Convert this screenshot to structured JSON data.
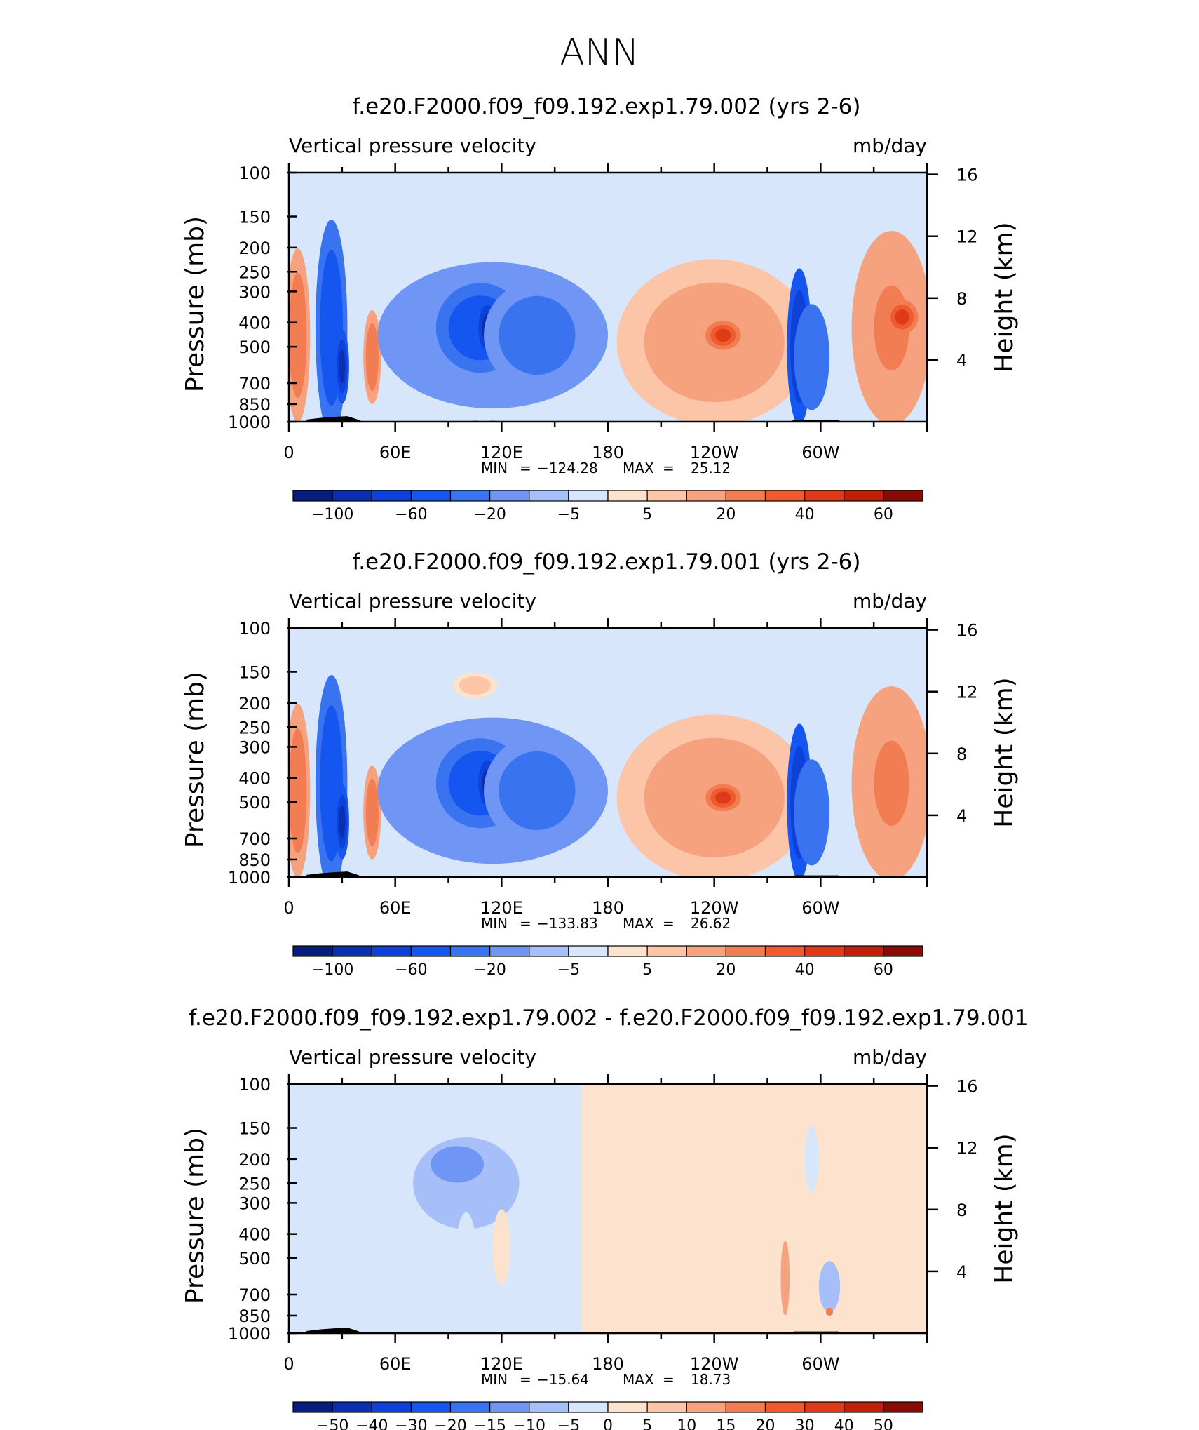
{
  "page_title": "ANN",
  "chart_data": [
    {
      "type": "heatmap",
      "title": "f.e20.F2000.f09_f09.192.exp1.79.002 (yrs 2-6)",
      "left_label": "Vertical pressure velocity",
      "right_label": "mb/day",
      "ylabel": "Pressure (mb)",
      "y2label": "Height (km)",
      "pressure_ticks": [
        "100",
        "150",
        "200",
        "250",
        "300",
        "400",
        "500",
        "700",
        "850",
        "1000"
      ],
      "pressure_values": [
        100,
        150,
        200,
        250,
        300,
        400,
        500,
        700,
        850,
        1000
      ],
      "height_ticks": [
        "16",
        "12",
        "8",
        "4"
      ],
      "height_values": [
        16,
        12,
        8,
        4
      ],
      "xlim": [
        0,
        360
      ],
      "x_ticks": [
        {
          "lon": 0,
          "label": "0"
        },
        {
          "lon": 60,
          "label": "60E"
        },
        {
          "lon": 120,
          "label": "120E"
        },
        {
          "lon": 180,
          "label": "180"
        },
        {
          "lon": 240,
          "label": "120W"
        },
        {
          "lon": 300,
          "label": "60W"
        }
      ],
      "min_label": "MIN",
      "max_label": "MAX",
      "min_value": "−124.28",
      "max_value": "25.12",
      "colorbar_labels": [
        "−100",
        "−60",
        "−20",
        "−5",
        "5",
        "20",
        "40",
        "60"
      ],
      "colorbar_colors": [
        "#081d7e",
        "#0b2fb0",
        "#0d41d8",
        "#1556f0",
        "#3a73f0",
        "#6f96f5",
        "#a7bff8",
        "#d7e6fb",
        "#fde3cd",
        "#fcc5a8",
        "#f6a27f",
        "#f27d52",
        "#ef5a2e",
        "#dd3a17",
        "#be2008",
        "#8a0a04"
      ],
      "features": [
        {
          "lon": 5,
          "p": 450,
          "w": 14,
          "h": 600,
          "v": 25
        },
        {
          "lon": 24,
          "p": 420,
          "w": 18,
          "h": 640,
          "v": -60
        },
        {
          "lon": 30,
          "p": 600,
          "w": 8,
          "h": 400,
          "v": -100
        },
        {
          "lon": 47,
          "p": 550,
          "w": 10,
          "h": 450,
          "v": 25
        },
        {
          "lon": 115,
          "p": 450,
          "w": 130,
          "h": 530,
          "v": -25
        },
        {
          "lon": 108,
          "p": 420,
          "w": 50,
          "h": 330,
          "v": -60
        },
        {
          "lon": 112,
          "p": 420,
          "w": 14,
          "h": 240,
          "v": -100
        },
        {
          "lon": 140,
          "p": 450,
          "w": 60,
          "h": 420,
          "v": -30
        },
        {
          "lon": 195,
          "p": 160,
          "w": 80,
          "h": 60,
          "v": -5
        },
        {
          "lon": 240,
          "p": 480,
          "w": 110,
          "h": 620,
          "v": 18
        },
        {
          "lon": 245,
          "p": 450,
          "w": 20,
          "h": 120,
          "v": 40
        },
        {
          "lon": 288,
          "p": 500,
          "w": 14,
          "h": 620,
          "v": -80
        },
        {
          "lon": 295,
          "p": 550,
          "w": 20,
          "h": 500,
          "v": -40
        },
        {
          "lon": 340,
          "p": 420,
          "w": 45,
          "h": 600,
          "v": 20
        },
        {
          "lon": 346,
          "p": 380,
          "w": 18,
          "h": 120,
          "v": 40
        }
      ],
      "topography": [
        {
          "lon": 10,
          "p": 980
        },
        {
          "lon": 18,
          "p": 965
        },
        {
          "lon": 27,
          "p": 955
        },
        {
          "lon": 33,
          "p": 950
        },
        {
          "lon": 38,
          "p": 975
        },
        {
          "lon": 42,
          "p": 1000
        },
        {
          "lon": 102,
          "p": 1000
        },
        {
          "lon": 105,
          "p": 990
        },
        {
          "lon": 110,
          "p": 1000
        },
        {
          "lon": 115,
          "p": 990
        },
        {
          "lon": 120,
          "p": 1000
        },
        {
          "lon": 282,
          "p": 1000
        },
        {
          "lon": 285,
          "p": 985
        },
        {
          "lon": 310,
          "p": 985
        },
        {
          "lon": 312,
          "p": 1000
        }
      ]
    },
    {
      "type": "heatmap",
      "title": "f.e20.F2000.f09_f09.192.exp1.79.001 (yrs 2-6)",
      "left_label": "Vertical pressure velocity",
      "right_label": "mb/day",
      "ylabel": "Pressure (mb)",
      "y2label": "Height (km)",
      "pressure_ticks": [
        "100",
        "150",
        "200",
        "250",
        "300",
        "400",
        "500",
        "700",
        "850",
        "1000"
      ],
      "pressure_values": [
        100,
        150,
        200,
        250,
        300,
        400,
        500,
        700,
        850,
        1000
      ],
      "height_ticks": [
        "16",
        "12",
        "8",
        "4"
      ],
      "height_values": [
        16,
        12,
        8,
        4
      ],
      "xlim": [
        0,
        360
      ],
      "x_ticks": [
        {
          "lon": 0,
          "label": "0"
        },
        {
          "lon": 60,
          "label": "60E"
        },
        {
          "lon": 120,
          "label": "120E"
        },
        {
          "lon": 180,
          "label": "180"
        },
        {
          "lon": 240,
          "label": "120W"
        },
        {
          "lon": 300,
          "label": "60W"
        }
      ],
      "min_label": "MIN",
      "max_label": "MAX",
      "min_value": "−133.83",
      "max_value": "26.62",
      "colorbar_labels": [
        "−100",
        "−60",
        "−20",
        "−5",
        "5",
        "20",
        "40",
        "60"
      ],
      "colorbar_colors": [
        "#081d7e",
        "#0b2fb0",
        "#0d41d8",
        "#1556f0",
        "#3a73f0",
        "#6f96f5",
        "#a7bff8",
        "#d7e6fb",
        "#fde3cd",
        "#fcc5a8",
        "#f6a27f",
        "#f27d52",
        "#ef5a2e",
        "#dd3a17",
        "#be2008",
        "#8a0a04"
      ],
      "features": [
        {
          "lon": 5,
          "p": 450,
          "w": 14,
          "h": 600,
          "v": 25
        },
        {
          "lon": 24,
          "p": 420,
          "w": 18,
          "h": 640,
          "v": -60
        },
        {
          "lon": 30,
          "p": 600,
          "w": 8,
          "h": 400,
          "v": -100
        },
        {
          "lon": 47,
          "p": 550,
          "w": 10,
          "h": 450,
          "v": 25
        },
        {
          "lon": 105,
          "p": 170,
          "w": 25,
          "h": 40,
          "v": 8
        },
        {
          "lon": 115,
          "p": 450,
          "w": 130,
          "h": 530,
          "v": -25
        },
        {
          "lon": 108,
          "p": 420,
          "w": 50,
          "h": 330,
          "v": -60
        },
        {
          "lon": 112,
          "p": 420,
          "w": 14,
          "h": 240,
          "v": -100
        },
        {
          "lon": 140,
          "p": 450,
          "w": 60,
          "h": 420,
          "v": -30
        },
        {
          "lon": 195,
          "p": 160,
          "w": 80,
          "h": 60,
          "v": -5
        },
        {
          "lon": 240,
          "p": 480,
          "w": 110,
          "h": 620,
          "v": 18
        },
        {
          "lon": 245,
          "p": 480,
          "w": 20,
          "h": 120,
          "v": 40
        },
        {
          "lon": 288,
          "p": 500,
          "w": 14,
          "h": 620,
          "v": -80
        },
        {
          "lon": 295,
          "p": 550,
          "w": 20,
          "h": 500,
          "v": -40
        },
        {
          "lon": 340,
          "p": 420,
          "w": 45,
          "h": 600,
          "v": 20
        }
      ],
      "topography": [
        {
          "lon": 10,
          "p": 980
        },
        {
          "lon": 18,
          "p": 965
        },
        {
          "lon": 27,
          "p": 955
        },
        {
          "lon": 33,
          "p": 950
        },
        {
          "lon": 38,
          "p": 975
        },
        {
          "lon": 42,
          "p": 1000
        },
        {
          "lon": 102,
          "p": 1000
        },
        {
          "lon": 105,
          "p": 990
        },
        {
          "lon": 110,
          "p": 1000
        },
        {
          "lon": 115,
          "p": 990
        },
        {
          "lon": 120,
          "p": 1000
        },
        {
          "lon": 282,
          "p": 1000
        },
        {
          "lon": 285,
          "p": 985
        },
        {
          "lon": 310,
          "p": 985
        },
        {
          "lon": 312,
          "p": 1000
        }
      ]
    },
    {
      "type": "heatmap",
      "title": "f.e20.F2000.f09_f09.192.exp1.79.002 - f.e20.F2000.f09_f09.192.exp1.79.001",
      "left_label": "Vertical pressure velocity",
      "right_label": "mb/day",
      "ylabel": "Pressure (mb)",
      "y2label": "Height (km)",
      "pressure_ticks": [
        "100",
        "150",
        "200",
        "250",
        "300",
        "400",
        "500",
        "700",
        "850",
        "1000"
      ],
      "pressure_values": [
        100,
        150,
        200,
        250,
        300,
        400,
        500,
        700,
        850,
        1000
      ],
      "height_ticks": [
        "16",
        "12",
        "8",
        "4"
      ],
      "height_values": [
        16,
        12,
        8,
        4
      ],
      "xlim": [
        0,
        360
      ],
      "x_ticks": [
        {
          "lon": 0,
          "label": "0"
        },
        {
          "lon": 60,
          "label": "60E"
        },
        {
          "lon": 120,
          "label": "120E"
        },
        {
          "lon": 180,
          "label": "180"
        },
        {
          "lon": 240,
          "label": "120W"
        },
        {
          "lon": 300,
          "label": "60W"
        }
      ],
      "min_label": "MIN",
      "max_label": "MAX",
      "min_value": "−15.64",
      "max_value": "18.73",
      "colorbar_labels": [
        "−50",
        "−40",
        "−30",
        "−20",
        "−15",
        "−10",
        "−5",
        "0",
        "5",
        "10",
        "15",
        "20",
        "30",
        "40",
        "50"
      ],
      "colorbar_colors": [
        "#081d7e",
        "#0b2fb0",
        "#0d41d8",
        "#1556f0",
        "#3a73f0",
        "#6f96f5",
        "#a7bff8",
        "#d7e6fb",
        "#fde3cd",
        "#fcc5a8",
        "#f6a27f",
        "#f27d52",
        "#ef5a2e",
        "#dd3a17",
        "#be2008",
        "#8a0a04"
      ],
      "features": [
        {
          "lon": 5,
          "p": 300,
          "w": 16,
          "h": 300,
          "v": -3
        },
        {
          "lon": 70,
          "p": 250,
          "w": 12,
          "h": 200,
          "v": -3
        },
        {
          "lon": 100,
          "p": 250,
          "w": 60,
          "h": 200,
          "v": -8
        },
        {
          "lon": 95,
          "p": 210,
          "w": 30,
          "h": 70,
          "v": -15
        },
        {
          "lon": 100,
          "p": 500,
          "w": 12,
          "h": 400,
          "v": -4
        },
        {
          "lon": 120,
          "p": 450,
          "w": 10,
          "h": 300,
          "v": 3
        },
        {
          "lon": 190,
          "p": 250,
          "w": 20,
          "h": 120,
          "v": 3
        },
        {
          "lon": 280,
          "p": 600,
          "w": 5,
          "h": 400,
          "v": 12
        },
        {
          "lon": 295,
          "p": 200,
          "w": 8,
          "h": 120,
          "v": -3
        },
        {
          "lon": 305,
          "p": 650,
          "w": 12,
          "h": 300,
          "v": -6
        },
        {
          "lon": 305,
          "p": 820,
          "w": 4,
          "h": 60,
          "v": 15
        }
      ],
      "topography": [
        {
          "lon": 10,
          "p": 980
        },
        {
          "lon": 18,
          "p": 965
        },
        {
          "lon": 27,
          "p": 955
        },
        {
          "lon": 33,
          "p": 950
        },
        {
          "lon": 38,
          "p": 975
        },
        {
          "lon": 42,
          "p": 1000
        },
        {
          "lon": 102,
          "p": 1000
        },
        {
          "lon": 105,
          "p": 990
        },
        {
          "lon": 110,
          "p": 1000
        },
        {
          "lon": 115,
          "p": 990
        },
        {
          "lon": 120,
          "p": 1000
        },
        {
          "lon": 282,
          "p": 1000
        },
        {
          "lon": 285,
          "p": 985
        },
        {
          "lon": 310,
          "p": 985
        },
        {
          "lon": 312,
          "p": 1000
        }
      ]
    }
  ]
}
